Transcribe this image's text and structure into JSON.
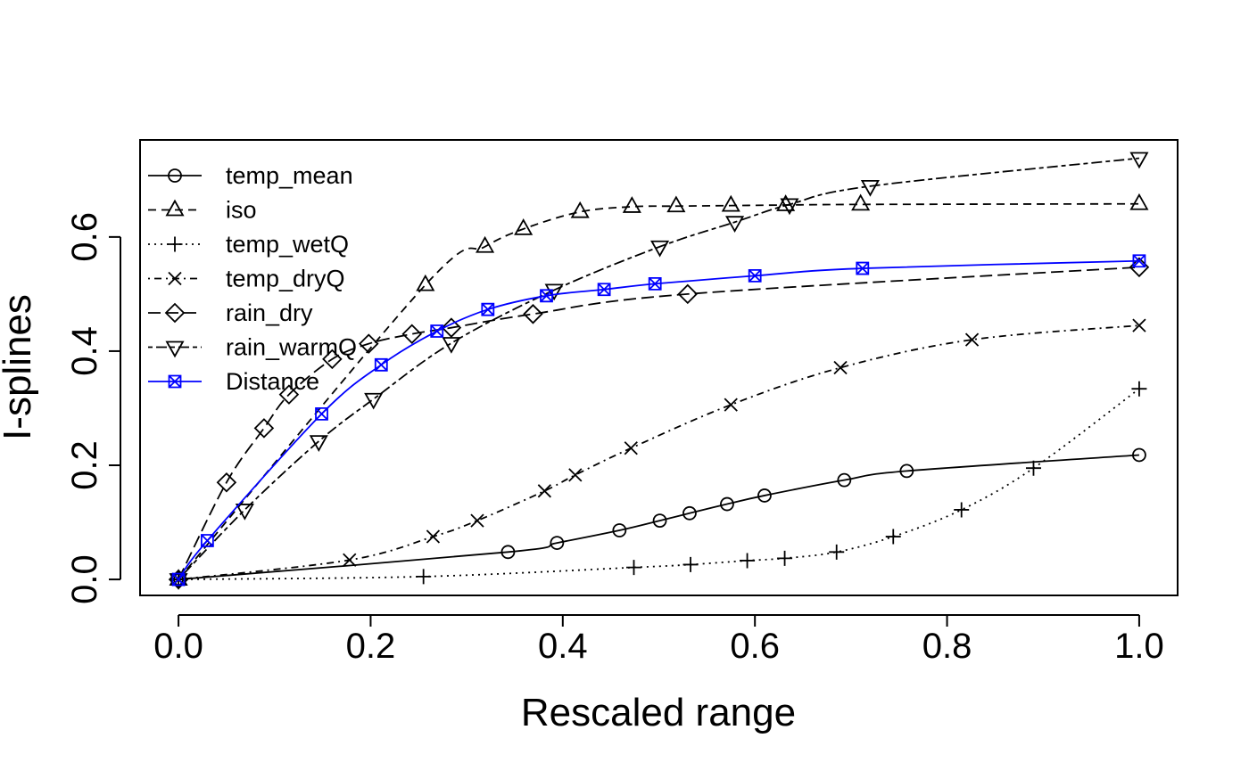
{
  "chart_data": {
    "type": "line",
    "xlabel": "Rescaled range",
    "ylabel": "I-splines",
    "xlim": [
      -0.04,
      1.04
    ],
    "ylim": [
      -0.028,
      0.77
    ],
    "x_ticks": [
      0.0,
      0.2,
      0.4,
      0.6,
      0.8,
      1.0
    ],
    "x_tick_labels": [
      "0.0",
      "0.2",
      "0.4",
      "0.6",
      "0.8",
      "1.0"
    ],
    "y_ticks": [
      0.0,
      0.2,
      0.4,
      0.6
    ],
    "y_tick_labels": [
      "0.0",
      "0.2",
      "0.4",
      "0.6"
    ],
    "grid": false,
    "legend_position": "top-left",
    "series": [
      {
        "name": "temp_mean",
        "color": "#000000",
        "line_style": "solid",
        "marker": "circle",
        "x": [
          0.0,
          0.343,
          0.394,
          0.459,
          0.501,
          0.532,
          0.571,
          0.61,
          0.693,
          0.758,
          1.0
        ],
        "y": [
          0.0,
          0.048,
          0.064,
          0.086,
          0.103,
          0.116,
          0.132,
          0.147,
          0.174,
          0.19,
          0.218
        ]
      },
      {
        "name": "iso",
        "color": "#000000",
        "line_style": "dashed",
        "marker": "triangle-up",
        "x": [
          0.0,
          0.257,
          0.319,
          0.359,
          0.418,
          0.472,
          0.518,
          0.575,
          0.632,
          0.71,
          1.0
        ],
        "y": [
          0.0,
          0.516,
          0.583,
          0.614,
          0.644,
          0.653,
          0.654,
          0.655,
          0.656,
          0.657,
          0.658
        ]
      },
      {
        "name": "temp_wetQ",
        "color": "#000000",
        "line_style": "dotted",
        "marker": "plus",
        "x": [
          0.0,
          0.255,
          0.474,
          0.533,
          0.592,
          0.631,
          0.685,
          0.744,
          0.815,
          0.89,
          1.0
        ],
        "y": [
          0.0,
          0.005,
          0.021,
          0.026,
          0.033,
          0.037,
          0.048,
          0.075,
          0.122,
          0.195,
          0.334
        ]
      },
      {
        "name": "temp_dryQ",
        "color": "#000000",
        "line_style": "dashdot",
        "marker": "cross",
        "x": [
          0.0,
          0.178,
          0.265,
          0.311,
          0.381,
          0.413,
          0.471,
          0.575,
          0.689,
          0.826,
          1.0
        ],
        "y": [
          0.0,
          0.034,
          0.075,
          0.103,
          0.155,
          0.183,
          0.23,
          0.306,
          0.371,
          0.42,
          0.445
        ]
      },
      {
        "name": "rain_dry",
        "color": "#000000",
        "line_style": "longdash",
        "marker": "diamond",
        "x": [
          0.0,
          0.05,
          0.089,
          0.115,
          0.16,
          0.198,
          0.243,
          0.284,
          0.369,
          0.53,
          1.0
        ],
        "y": [
          0.0,
          0.17,
          0.265,
          0.324,
          0.386,
          0.413,
          0.43,
          0.441,
          0.465,
          0.5,
          0.547
        ]
      },
      {
        "name": "rain_warmQ",
        "color": "#000000",
        "line_style": "twodash",
        "marker": "triangle-down",
        "x": [
          0.0,
          0.069,
          0.146,
          0.203,
          0.284,
          0.391,
          0.501,
          0.579,
          0.636,
          0.72,
          1.0
        ],
        "y": [
          0.0,
          0.122,
          0.242,
          0.316,
          0.414,
          0.507,
          0.583,
          0.626,
          0.657,
          0.689,
          0.738
        ]
      },
      {
        "name": "Distance",
        "color": "#0000ff",
        "line_style": "solid",
        "marker": "square-cross",
        "x": [
          0.0,
          0.03,
          0.149,
          0.211,
          0.269,
          0.322,
          0.383,
          0.443,
          0.496,
          0.6,
          0.712,
          1.0
        ],
        "y": [
          0.0,
          0.068,
          0.29,
          0.376,
          0.435,
          0.473,
          0.497,
          0.508,
          0.518,
          0.532,
          0.545,
          0.558
        ]
      }
    ]
  }
}
